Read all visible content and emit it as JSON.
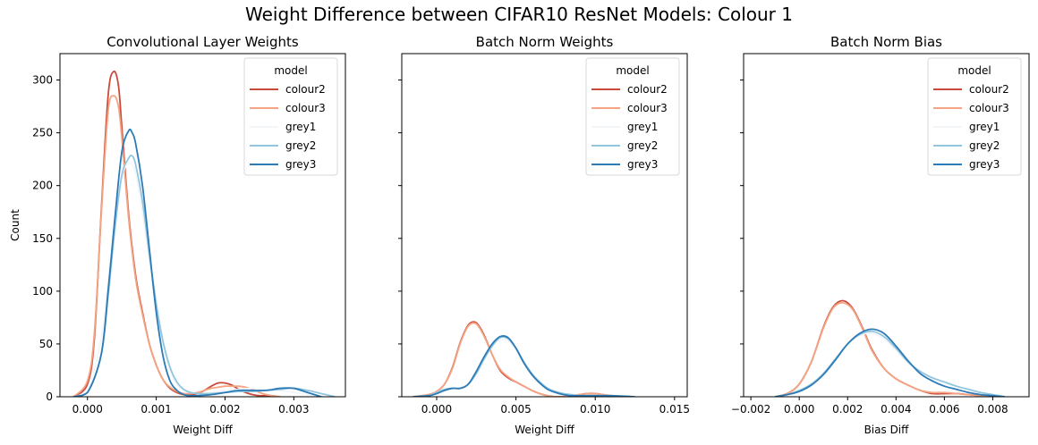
{
  "suptitle": "Weight Difference between CIFAR10 ResNet Models: Colour 1",
  "chart_data": [
    {
      "type": "line",
      "title": "Convolutional Layer Weights",
      "xlabel": "Weight Diff",
      "ylabel": "Count",
      "xlim": [
        -0.0004,
        0.00375
      ],
      "ylim": [
        0,
        325
      ],
      "xticks": [
        0.0,
        0.001,
        0.002,
        0.003
      ],
      "xtick_labels": [
        "0.000",
        "0.001",
        "0.002",
        "0.003"
      ],
      "yticks": [
        0,
        50,
        100,
        150,
        200,
        250,
        300
      ],
      "ytick_labels": [
        "0",
        "50",
        "100",
        "150",
        "200",
        "250",
        "300"
      ],
      "legend": {
        "title": "model",
        "placement": "top-right"
      },
      "series": [
        {
          "name": "colour2",
          "color": "#ca4a3c",
          "x": [
            -0.0002,
            0.0,
            0.0001,
            0.0002,
            0.0003,
            0.00038,
            0.00045,
            0.0005,
            0.0006,
            0.0007,
            0.0008,
            0.0009,
            0.001,
            0.0011,
            0.0012,
            0.0013,
            0.0014,
            0.0015,
            0.0016,
            0.0017,
            0.0018,
            0.0019,
            0.002,
            0.0021,
            0.0022,
            0.0023,
            0.0024,
            0.0025,
            0.0026,
            0.0027,
            0.0028
          ],
          "y": [
            0,
            12,
            55,
            175,
            285,
            308,
            295,
            255,
            172,
            115,
            80,
            50,
            30,
            16,
            8,
            4,
            2,
            2,
            3,
            6,
            10,
            13,
            13,
            11,
            7,
            4,
            2,
            1,
            1,
            0,
            0
          ]
        },
        {
          "name": "colour3",
          "color": "#f4a482",
          "x": [
            -0.0002,
            0.0,
            0.0001,
            0.0002,
            0.0003,
            0.00038,
            0.00045,
            0.0005,
            0.0006,
            0.0007,
            0.0008,
            0.0009,
            0.001,
            0.0011,
            0.0012,
            0.0013,
            0.0014,
            0.0015,
            0.0016,
            0.0017,
            0.0018,
            0.0019,
            0.002,
            0.0021,
            0.0022,
            0.0023,
            0.0024,
            0.0025,
            0.0026,
            0.0027,
            0.0028
          ],
          "y": [
            0,
            15,
            60,
            172,
            270,
            285,
            275,
            245,
            168,
            112,
            78,
            50,
            30,
            16,
            9,
            5,
            3,
            3,
            4,
            6,
            8,
            9,
            10,
            10,
            10,
            9,
            7,
            4,
            2,
            1,
            0
          ]
        },
        {
          "name": "grey1",
          "color": "#f2f6f9",
          "x": [
            -0.0002,
            0.0,
            0.0002,
            0.0003,
            0.0004,
            0.0005,
            0.0006,
            0.0007,
            0.0008,
            0.0009,
            0.001,
            0.0011,
            0.0012,
            0.0013,
            0.0014,
            0.0015,
            0.0016,
            0.0018,
            0.002,
            0.0022,
            0.0024,
            0.0026,
            0.0028,
            0.003,
            0.0032,
            0.0034
          ],
          "y": [
            0,
            5,
            55,
            110,
            168,
            208,
            222,
            212,
            175,
            128,
            82,
            48,
            25,
            12,
            6,
            4,
            3,
            4,
            6,
            7,
            8,
            7,
            6,
            4,
            2,
            0
          ]
        },
        {
          "name": "grey2",
          "color": "#92c5de",
          "x": [
            -0.0002,
            0.0,
            0.0002,
            0.0003,
            0.0004,
            0.0005,
            0.0006,
            0.00065,
            0.0007,
            0.0008,
            0.0009,
            0.001,
            0.0011,
            0.0012,
            0.0013,
            0.0014,
            0.0015,
            0.0016,
            0.0018,
            0.002,
            0.0022,
            0.0024,
            0.0026,
            0.0028,
            0.003,
            0.0032,
            0.0034,
            0.0036
          ],
          "y": [
            0,
            4,
            40,
            95,
            160,
            210,
            226,
            228,
            220,
            185,
            135,
            88,
            52,
            28,
            14,
            7,
            4,
            3,
            3,
            4,
            5,
            5,
            6,
            7,
            8,
            6,
            3,
            0
          ]
        },
        {
          "name": "grey3",
          "color": "#2c7bb6",
          "x": [
            -0.0002,
            0.0,
            0.0002,
            0.0003,
            0.0004,
            0.0005,
            0.0006,
            0.00065,
            0.0007,
            0.0008,
            0.0009,
            0.001,
            0.0011,
            0.0012,
            0.0013,
            0.0014,
            0.0015,
            0.0016,
            0.0018,
            0.002,
            0.0022,
            0.0024,
            0.0026,
            0.0028,
            0.003,
            0.0032,
            0.0034
          ],
          "y": [
            0,
            4,
            40,
            100,
            170,
            232,
            252,
            250,
            240,
            200,
            140,
            80,
            38,
            15,
            6,
            2,
            1,
            1,
            2,
            4,
            6,
            6,
            6,
            8,
            8,
            4,
            0
          ]
        }
      ]
    },
    {
      "type": "line",
      "title": "Batch Norm Weights",
      "xlabel": "Weight Diff",
      "ylabel": "",
      "xlim": [
        -0.0022,
        0.0158
      ],
      "ylim": [
        0,
        325
      ],
      "xticks": [
        0.0,
        0.005,
        0.01,
        0.015
      ],
      "xtick_labels": [
        "0.000",
        "0.005",
        "0.010",
        "0.015"
      ],
      "yticks": [
        0,
        50,
        100,
        150,
        200,
        250,
        300
      ],
      "ytick_labels": [],
      "legend": {
        "title": "model",
        "placement": "top-right"
      },
      "series": [
        {
          "name": "colour2",
          "color": "#ca4a3c",
          "x": [
            -0.0015,
            -0.0005,
            0.0,
            0.0005,
            0.001,
            0.0015,
            0.002,
            0.0025,
            0.003,
            0.0035,
            0.004,
            0.0045,
            0.005,
            0.0055,
            0.006,
            0.0065,
            0.007,
            0.0075,
            0.008,
            0.0085,
            0.009,
            0.0095,
            0.01,
            0.0105,
            0.011,
            0.0115
          ],
          "y": [
            0,
            2,
            5,
            12,
            28,
            52,
            68,
            70,
            58,
            40,
            25,
            18,
            14,
            10,
            6,
            3,
            1,
            0,
            0,
            1,
            2,
            3,
            3,
            2,
            1,
            0
          ]
        },
        {
          "name": "colour3",
          "color": "#f4a482",
          "x": [
            -0.0015,
            -0.0005,
            0.0,
            0.0005,
            0.001,
            0.0015,
            0.002,
            0.0025,
            0.003,
            0.0035,
            0.004,
            0.0045,
            0.005,
            0.0055,
            0.006,
            0.0065,
            0.007,
            0.0075,
            0.008,
            0.0085,
            0.009,
            0.0095,
            0.01,
            0.0105,
            0.011,
            0.0115
          ],
          "y": [
            0,
            2,
            5,
            12,
            27,
            51,
            67,
            69,
            57,
            40,
            26,
            19,
            14,
            10,
            6,
            3,
            1,
            0,
            0,
            1,
            2,
            3,
            3,
            2,
            1,
            0
          ]
        },
        {
          "name": "grey1",
          "color": "#f2f6f9",
          "x": [
            -0.0015,
            -0.0005,
            0.0,
            0.0005,
            0.001,
            0.0015,
            0.002,
            0.0025,
            0.003,
            0.0035,
            0.004,
            0.0045,
            0.005,
            0.0055,
            0.006,
            0.0065,
            0.007,
            0.0075,
            0.008,
            0.0085,
            0.009,
            0.01,
            0.011,
            0.0125
          ],
          "y": [
            0,
            1,
            4,
            7,
            8,
            8,
            12,
            22,
            36,
            48,
            54,
            53,
            44,
            32,
            22,
            14,
            8,
            5,
            3,
            2,
            1,
            1,
            1,
            0
          ]
        },
        {
          "name": "grey2",
          "color": "#92c5de",
          "x": [
            -0.0015,
            -0.0005,
            0.0,
            0.0005,
            0.001,
            0.0015,
            0.002,
            0.0025,
            0.003,
            0.0035,
            0.004,
            0.0045,
            0.005,
            0.0055,
            0.006,
            0.0065,
            0.007,
            0.0075,
            0.008,
            0.0085,
            0.009,
            0.01,
            0.011,
            0.0125
          ],
          "y": [
            0,
            1,
            4,
            7,
            8,
            8,
            12,
            22,
            36,
            48,
            56,
            55,
            46,
            33,
            22,
            14,
            8,
            5,
            3,
            2,
            1,
            1,
            1,
            0
          ]
        },
        {
          "name": "grey3",
          "color": "#2c7bb6",
          "x": [
            -0.0015,
            -0.0005,
            0.0,
            0.0005,
            0.001,
            0.0015,
            0.002,
            0.0025,
            0.003,
            0.0035,
            0.004,
            0.0045,
            0.005,
            0.0055,
            0.006,
            0.0065,
            0.007,
            0.0075,
            0.008,
            0.0085,
            0.009,
            0.01,
            0.011,
            0.0125
          ],
          "y": [
            0,
            1,
            3,
            6,
            8,
            8,
            12,
            24,
            38,
            50,
            57,
            56,
            46,
            32,
            21,
            13,
            7,
            4,
            2,
            1,
            1,
            1,
            1,
            0
          ]
        }
      ]
    },
    {
      "type": "line",
      "title": "Batch Norm Bias",
      "xlabel": "Bias Diff",
      "ylabel": "",
      "xlim": [
        -0.0023,
        0.0095
      ],
      "ylim": [
        0,
        325
      ],
      "xticks": [
        -0.002,
        0.0,
        0.002,
        0.004,
        0.006,
        0.008
      ],
      "xtick_labels": [
        "−0.002",
        "0.000",
        "0.002",
        "0.004",
        "0.006",
        "0.008"
      ],
      "yticks": [
        0,
        50,
        100,
        150,
        200,
        250,
        300
      ],
      "ytick_labels": [],
      "legend": {
        "title": "model",
        "placement": "top-right"
      },
      "series": [
        {
          "name": "colour2",
          "color": "#ca4a3c",
          "x": [
            -0.001,
            -0.0005,
            0.0,
            0.0005,
            0.001,
            0.0014,
            0.0018,
            0.0022,
            0.0026,
            0.003,
            0.0035,
            0.004,
            0.0045,
            0.005,
            0.0055,
            0.006,
            0.0065,
            0.007,
            0.0075,
            0.008
          ],
          "y": [
            0,
            3,
            12,
            33,
            66,
            85,
            91,
            84,
            66,
            45,
            27,
            17,
            11,
            6,
            3,
            3,
            3,
            2,
            1,
            0
          ]
        },
        {
          "name": "colour3",
          "color": "#f4a482",
          "x": [
            -0.001,
            -0.0005,
            0.0,
            0.0005,
            0.001,
            0.0014,
            0.0018,
            0.0022,
            0.0026,
            0.003,
            0.0035,
            0.004,
            0.0045,
            0.005,
            0.0055,
            0.006,
            0.0065,
            0.007,
            0.0075,
            0.008
          ],
          "y": [
            0,
            3,
            12,
            33,
            65,
            84,
            89,
            83,
            65,
            44,
            27,
            17,
            11,
            6,
            4,
            4,
            3,
            2,
            1,
            0
          ]
        },
        {
          "name": "grey1",
          "color": "#f2f6f9",
          "x": [
            -0.001,
            -0.0005,
            0.0,
            0.0005,
            0.001,
            0.0015,
            0.002,
            0.0025,
            0.003,
            0.0035,
            0.004,
            0.0045,
            0.005,
            0.0055,
            0.006,
            0.0065,
            0.007,
            0.0075,
            0.008,
            0.0085
          ],
          "y": [
            0,
            2,
            6,
            12,
            22,
            36,
            50,
            58,
            60,
            55,
            44,
            32,
            23,
            17,
            13,
            10,
            7,
            4,
            2,
            0
          ]
        },
        {
          "name": "grey2",
          "color": "#92c5de",
          "x": [
            -0.001,
            -0.0005,
            0.0,
            0.0005,
            0.001,
            0.0015,
            0.002,
            0.0025,
            0.003,
            0.0035,
            0.004,
            0.0045,
            0.005,
            0.0055,
            0.006,
            0.0065,
            0.007,
            0.0075,
            0.008,
            0.0085
          ],
          "y": [
            0,
            2,
            6,
            12,
            22,
            36,
            50,
            59,
            62,
            57,
            46,
            33,
            24,
            18,
            14,
            10,
            7,
            4,
            2,
            0
          ]
        },
        {
          "name": "grey3",
          "color": "#2c7bb6",
          "x": [
            -0.001,
            -0.0005,
            0.0,
            0.0005,
            0.001,
            0.0015,
            0.002,
            0.0025,
            0.003,
            0.0035,
            0.004,
            0.0045,
            0.005,
            0.0055,
            0.006,
            0.0065,
            0.007,
            0.0075,
            0.008,
            0.0085
          ],
          "y": [
            0,
            2,
            5,
            11,
            21,
            35,
            50,
            60,
            64,
            60,
            48,
            34,
            22,
            15,
            10,
            7,
            4,
            2,
            1,
            0
          ]
        }
      ]
    }
  ]
}
